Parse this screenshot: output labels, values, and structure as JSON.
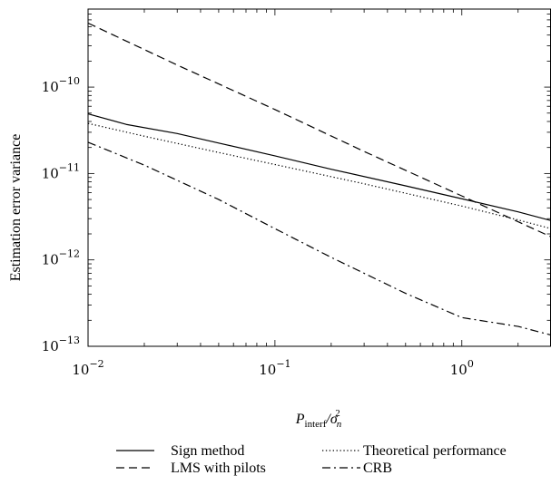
{
  "chart_data": {
    "type": "line",
    "xscale": "log",
    "yscale": "log",
    "xlim": [
      0.01,
      3
    ],
    "ylim": [
      1e-13,
      8e-10
    ],
    "xlabel": "P_interf/σ_n^2",
    "xlabel_parts": {
      "main": "P",
      "sub": "interf",
      "sep": "/σ",
      "sub2": "n",
      "sup": "2"
    },
    "ylabel": "Estimation error variance",
    "x_ticks": [
      {
        "value": 0.01,
        "base": "10",
        "exp": "−2"
      },
      {
        "value": 0.1,
        "base": "10",
        "exp": "−1"
      },
      {
        "value": 1,
        "base": "10",
        "exp": "0"
      }
    ],
    "y_ticks": [
      {
        "value": 1e-13,
        "base": "10",
        "exp": "−13"
      },
      {
        "value": 1e-12,
        "base": "10",
        "exp": "−12"
      },
      {
        "value": 1e-11,
        "base": "10",
        "exp": "−11"
      },
      {
        "value": 1e-10,
        "base": "10",
        "exp": "−10"
      }
    ],
    "grid": false,
    "legend_position": "bottom",
    "series": [
      {
        "name": "Sign method",
        "style": "solid",
        "color": "#000000",
        "x": [
          0.01,
          0.016,
          0.03,
          0.05,
          0.1,
          0.2,
          0.5,
          1,
          2,
          3
        ],
        "y": [
          4.9e-11,
          3.7e-11,
          2.9e-11,
          2.25e-11,
          1.6e-11,
          1.12e-11,
          7.2e-12,
          5.1e-12,
          3.6e-12,
          2.85e-12
        ]
      },
      {
        "name": "LMS with pilots",
        "style": "dashed",
        "color": "#000000",
        "x": [
          0.01,
          0.03,
          0.1,
          0.3,
          1,
          3
        ],
        "y": [
          5.5e-10,
          1.8e-10,
          5.5e-11,
          1.8e-11,
          5.5e-12,
          1.85e-12
        ]
      },
      {
        "name": "Theoretical performance",
        "style": "dotted",
        "color": "#000000",
        "x": [
          0.01,
          0.02,
          0.05,
          0.1,
          0.3,
          1,
          2,
          3
        ],
        "y": [
          3.8e-11,
          2.7e-11,
          1.75e-11,
          1.27e-11,
          7.6e-12,
          4.2e-12,
          2.9e-12,
          2.3e-12
        ]
      },
      {
        "name": "CRB",
        "style": "dashdot",
        "color": "#000000",
        "x": [
          0.01,
          0.02,
          0.05,
          0.1,
          0.2,
          0.5,
          1,
          2,
          3
        ],
        "y": [
          2.3e-11,
          1.25e-11,
          5e-12,
          2.3e-12,
          1.07e-12,
          4.1e-13,
          2.15e-13,
          1.7e-13,
          1.35e-13
        ]
      }
    ]
  }
}
